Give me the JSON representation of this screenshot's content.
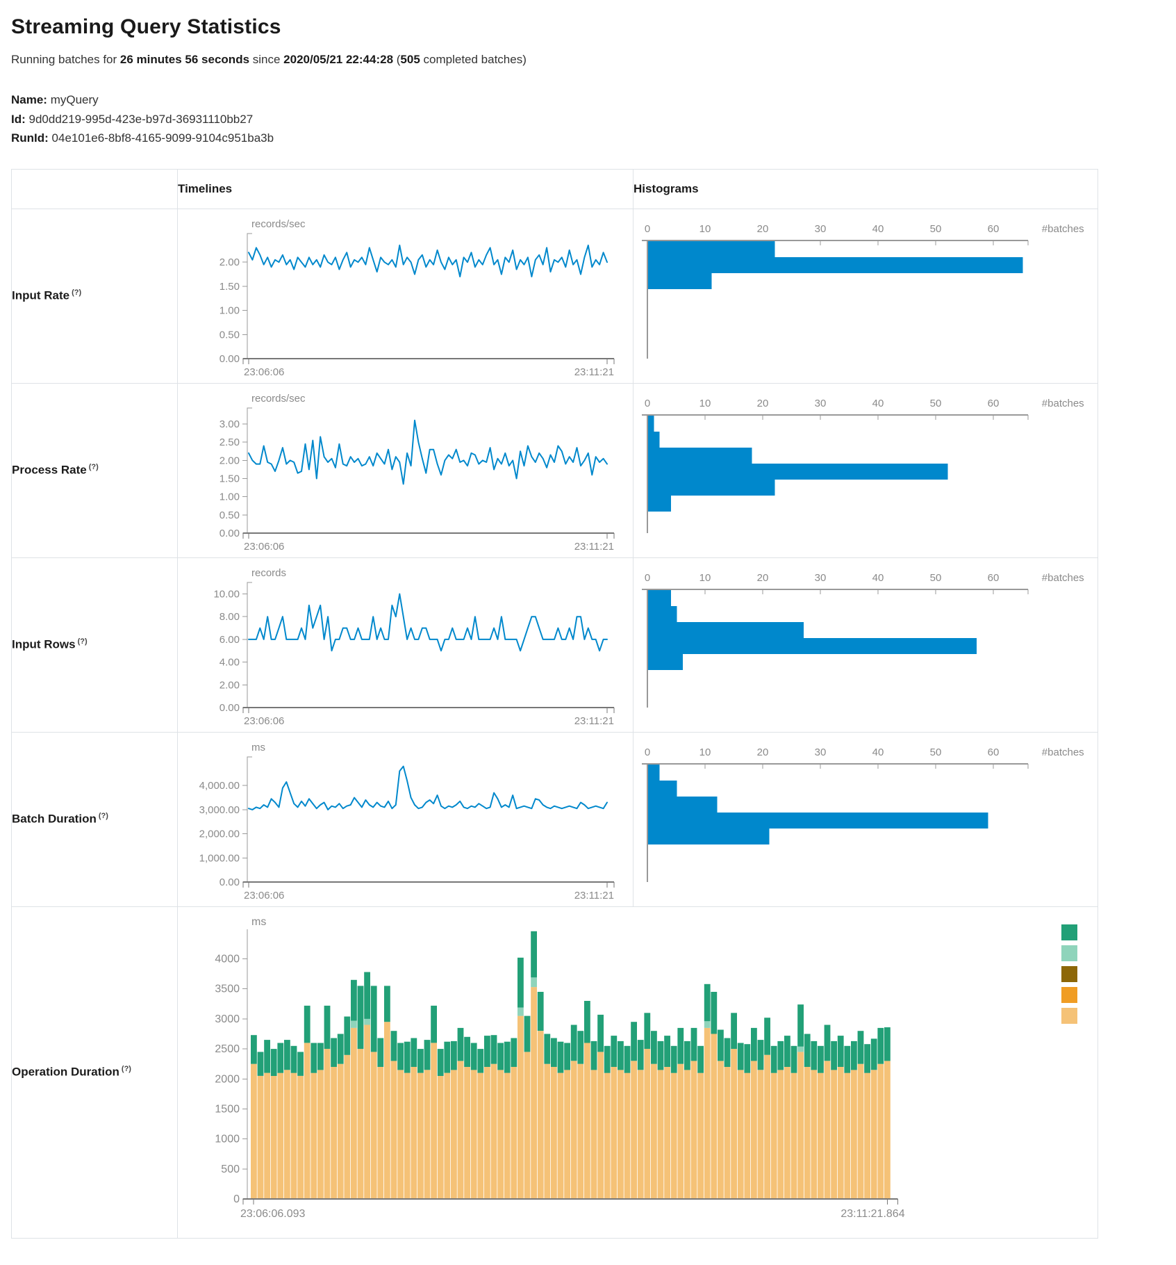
{
  "page": {
    "title": "Streaming Query Statistics",
    "summary": {
      "prefix": "Running batches for ",
      "duration": "26 minutes 56 seconds",
      "since": " since ",
      "start_time": "2020/05/21 22:44:28",
      "open_paren": " (",
      "batch_count": "505",
      "suffix": " completed batches)"
    },
    "meta": {
      "name_label": "Name:",
      "name_value": " myQuery",
      "id_label": "Id:",
      "id_value": " 9d0dd219-995d-423e-b97d-36931110bb27",
      "runid_label": "RunId:",
      "runid_value": " 04e101e6-8bf8-4165-9099-9104c951ba3b"
    }
  },
  "table": {
    "timelines_header": "Timelines",
    "histograms_header": "Histograms"
  },
  "colors": {
    "line": "#0088cc",
    "hist": "#0088cc",
    "axis": "#999999",
    "axis_strong": "#777777",
    "tick_text": "#8a8a8a",
    "stack_green": "#22a077",
    "stack_lightgreen": "#8fd4bb",
    "stack_tan": "#f5c277",
    "legend_brown": "#8d6708",
    "legend_orange": "#f09d24"
  },
  "chart_data": {
    "histogram_axis": {
      "ticks": [
        0,
        10,
        20,
        30,
        40,
        50,
        60
      ],
      "domain_max": 66,
      "label": "#batches"
    },
    "metrics": [
      {
        "name": "Input Rate",
        "help": "(?)",
        "unit": "records/sec",
        "type": "line",
        "x_start": "23:06:06",
        "x_end": "23:11:21",
        "ymax": 2.45,
        "yticks": [
          {
            "label": "2.00",
            "v": 2.0
          },
          {
            "label": "1.50",
            "v": 1.5
          },
          {
            "label": "1.00",
            "v": 1.0
          },
          {
            "label": "0.50",
            "v": 0.5
          },
          {
            "label": "0.00",
            "v": 0.0
          }
        ],
        "values": [
          2.2,
          2.05,
          2.3,
          2.15,
          1.95,
          2.1,
          1.9,
          2.05,
          2.0,
          2.15,
          1.95,
          2.05,
          1.85,
          2.1,
          2.0,
          1.9,
          2.1,
          1.95,
          2.05,
          1.9,
          2.15,
          2.0,
          1.95,
          2.1,
          1.85,
          2.05,
          2.2,
          1.9,
          2.05,
          2.0,
          2.1,
          1.95,
          2.3,
          2.05,
          1.8,
          2.1,
          2.0,
          1.95,
          2.05,
          1.9,
          2.35,
          1.95,
          2.1,
          2.0,
          1.75,
          2.05,
          2.15,
          1.9,
          2.05,
          1.95,
          2.25,
          2.0,
          1.85,
          2.1,
          1.95,
          2.05,
          1.7,
          2.1,
          2.0,
          2.2,
          1.9,
          2.05,
          1.95,
          2.15,
          2.3,
          1.95,
          2.05,
          1.75,
          2.1,
          2.0,
          2.25,
          1.85,
          2.05,
          1.95,
          2.1,
          1.7,
          2.05,
          2.15,
          1.95,
          2.3,
          1.8,
          2.05,
          2.0,
          2.1,
          1.9,
          2.25,
          1.95,
          2.05,
          1.75,
          2.1,
          2.35,
          1.9,
          2.05,
          1.95,
          2.2,
          2.0
        ],
        "histogram": {
          "type": "bar",
          "bins": [
            22,
            65,
            11
          ]
        }
      },
      {
        "name": "Process Rate",
        "help": "(?)",
        "unit": "records/sec",
        "type": "line",
        "x_start": "23:06:06",
        "x_end": "23:11:21",
        "ymax": 3.25,
        "yticks": [
          {
            "label": "3.00",
            "v": 3.0
          },
          {
            "label": "2.50",
            "v": 2.5
          },
          {
            "label": "2.00",
            "v": 2.0
          },
          {
            "label": "1.50",
            "v": 1.5
          },
          {
            "label": "1.00",
            "v": 1.0
          },
          {
            "label": "0.50",
            "v": 0.5
          },
          {
            "label": "0.00",
            "v": 0.0
          }
        ],
        "values": [
          2.2,
          2.0,
          1.9,
          1.9,
          2.4,
          1.95,
          1.9,
          1.7,
          2.0,
          2.35,
          1.9,
          2.0,
          1.95,
          1.65,
          1.7,
          2.45,
          1.75,
          2.55,
          1.5,
          2.65,
          2.1,
          1.95,
          2.05,
          1.8,
          2.45,
          1.9,
          1.85,
          2.1,
          1.95,
          2.05,
          1.85,
          1.9,
          2.1,
          1.85,
          2.2,
          2.05,
          1.9,
          2.3,
          1.75,
          2.1,
          1.95,
          1.35,
          2.2,
          1.85,
          3.1,
          2.5,
          2.05,
          1.65,
          2.3,
          2.3,
          1.9,
          1.6,
          2.0,
          2.15,
          2.05,
          2.3,
          1.95,
          2.0,
          1.85,
          2.2,
          2.15,
          1.9,
          2.0,
          1.95,
          2.35,
          1.75,
          2.05,
          1.9,
          2.2,
          1.85,
          2.0,
          1.5,
          2.25,
          1.85,
          2.4,
          2.1,
          1.95,
          2.2,
          2.05,
          1.8,
          2.15,
          1.95,
          2.4,
          2.25,
          1.9,
          2.1,
          1.95,
          2.35,
          1.85,
          2.0,
          2.2,
          1.6,
          2.1,
          1.95,
          2.05,
          1.9
        ],
        "histogram": {
          "type": "bar",
          "bins": [
            1,
            2,
            18,
            52,
            22,
            4
          ]
        }
      },
      {
        "name": "Input Rows",
        "help": "(?)",
        "unit": "records",
        "type": "line",
        "x_start": "23:06:06",
        "x_end": "23:11:21",
        "ymax": 10.4,
        "yticks": [
          {
            "label": "10.00",
            "v": 10.0
          },
          {
            "label": "8.00",
            "v": 8.0
          },
          {
            "label": "6.00",
            "v": 6.0
          },
          {
            "label": "4.00",
            "v": 4.0
          },
          {
            "label": "2.00",
            "v": 2.0
          },
          {
            "label": "0.00",
            "v": 0.0
          }
        ],
        "values": [
          6,
          6,
          6,
          7,
          6,
          8,
          6,
          6,
          7,
          8,
          6,
          6,
          6,
          6,
          7,
          6,
          9,
          7,
          8,
          9,
          6,
          8,
          5,
          6,
          6,
          7,
          7,
          6,
          6,
          7,
          6,
          6,
          6,
          8,
          6,
          7,
          6,
          6,
          9,
          8,
          10,
          8,
          6,
          7,
          6,
          6,
          7,
          7,
          6,
          6,
          6,
          5,
          6,
          6,
          7,
          6,
          6,
          6,
          7,
          6,
          8,
          6,
          6,
          6,
          6,
          7,
          6,
          8,
          6,
          6,
          6,
          6,
          5,
          6,
          7,
          8,
          8,
          7,
          6,
          6,
          6,
          6,
          7,
          6,
          6,
          7,
          6,
          8,
          8,
          6,
          7,
          6,
          6,
          5,
          6,
          6
        ],
        "histogram": {
          "type": "bar",
          "bins": [
            4,
            5,
            27,
            57,
            6
          ]
        }
      },
      {
        "name": "Batch Duration",
        "help": "(?)",
        "unit": "ms",
        "type": "line",
        "x_start": "23:06:06",
        "x_end": "23:11:21",
        "ymax": 4900,
        "yticks": [
          {
            "label": "4,000.00",
            "v": 4000
          },
          {
            "label": "3,000.00",
            "v": 3000
          },
          {
            "label": "2,000.00",
            "v": 2000
          },
          {
            "label": "1,000.00",
            "v": 1000
          },
          {
            "label": "0.00",
            "v": 0
          }
        ],
        "values": [
          3050,
          3000,
          3100,
          3050,
          3200,
          3100,
          3450,
          3300,
          3100,
          3900,
          4150,
          3700,
          3250,
          3100,
          3350,
          3150,
          3450,
          3250,
          3050,
          3200,
          3300,
          3000,
          3150,
          3100,
          3250,
          3050,
          3150,
          3200,
          3500,
          3300,
          3100,
          3400,
          3200,
          3100,
          3300,
          3150,
          3100,
          3350,
          3050,
          3200,
          4600,
          4800,
          4200,
          3500,
          3200,
          3050,
          3100,
          3300,
          3400,
          3250,
          3600,
          3150,
          3050,
          3150,
          3100,
          3200,
          3350,
          3100,
          3050,
          3150,
          3100,
          3250,
          3150,
          3050,
          3100,
          3700,
          3450,
          3100,
          3200,
          3100,
          3600,
          3050,
          3100,
          3150,
          3100,
          3050,
          3450,
          3400,
          3200,
          3100,
          3050,
          3150,
          3100,
          3050,
          3100,
          3150,
          3100,
          3050,
          3300,
          3200,
          3050,
          3100,
          3150,
          3100,
          3050,
          3300
        ],
        "histogram": {
          "type": "bar",
          "bins": [
            2,
            5,
            12,
            59,
            21
          ]
        }
      }
    ],
    "operation_duration": {
      "name": "Operation Duration",
      "help": "(?)",
      "unit": "ms",
      "type": "stacked-bar",
      "x_start": "23:06:06.093",
      "x_end": "23:11:21.864",
      "ymax": 4400,
      "yticks": [
        {
          "label": "4000",
          "v": 4000
        },
        {
          "label": "3500",
          "v": 3500
        },
        {
          "label": "3000",
          "v": 3000
        },
        {
          "label": "2500",
          "v": 2500
        },
        {
          "label": "2000",
          "v": 2000
        },
        {
          "label": "1500",
          "v": 1500
        },
        {
          "label": "1000",
          "v": 1000
        },
        {
          "label": "500",
          "v": 500
        },
        {
          "label": "0",
          "v": 0
        }
      ],
      "series": [
        {
          "name": "bottom-tan",
          "color": "#f5c277",
          "values": [
            2250,
            2050,
            2100,
            2050,
            2100,
            2150,
            2100,
            2050,
            2600,
            2100,
            2150,
            2500,
            2200,
            2250,
            2400,
            2850,
            2500,
            2900,
            2450,
            2200,
            2950,
            2300,
            2150,
            2100,
            2200,
            2100,
            2150,
            2600,
            2050,
            2100,
            2150,
            2300,
            2200,
            2150,
            2100,
            2200,
            2250,
            2150,
            2100,
            2200,
            3050,
            2450,
            3530,
            2800,
            2250,
            2200,
            2100,
            2150,
            2300,
            2250,
            2600,
            2150,
            2450,
            2100,
            2200,
            2150,
            2100,
            2300,
            2150,
            2500,
            2250,
            2150,
            2200,
            2100,
            2250,
            2150,
            2300,
            2100,
            2850,
            2750,
            2300,
            2200,
            2500,
            2150,
            2100,
            2300,
            2150,
            2400,
            2100,
            2150,
            2200,
            2100,
            2450,
            2200,
            2150,
            2100,
            2300,
            2150,
            2200,
            2100,
            2150,
            2250,
            2100,
            2150,
            2250,
            2300
          ]
        },
        {
          "name": "middle-lightgreen",
          "color": "#8fd4bb",
          "values": [
            0,
            0,
            0,
            0,
            0,
            0,
            0,
            0,
            0,
            0,
            0,
            0,
            0,
            0,
            0,
            120,
            0,
            100,
            0,
            0,
            0,
            0,
            0,
            0,
            0,
            0,
            0,
            0,
            0,
            0,
            0,
            0,
            0,
            0,
            0,
            0,
            0,
            0,
            0,
            0,
            140,
            0,
            160,
            0,
            0,
            0,
            0,
            0,
            0,
            0,
            0,
            0,
            0,
            0,
            0,
            0,
            0,
            0,
            0,
            0,
            0,
            0,
            0,
            0,
            0,
            0,
            0,
            0,
            110,
            0,
            0,
            0,
            0,
            0,
            0,
            0,
            0,
            0,
            0,
            0,
            0,
            0,
            90,
            0,
            0,
            0,
            0,
            0,
            0,
            0,
            0,
            0,
            0,
            0,
            0,
            0
          ]
        },
        {
          "name": "top-green",
          "color": "#22a077",
          "values": [
            480,
            400,
            550,
            450,
            500,
            500,
            450,
            400,
            620,
            500,
            450,
            720,
            480,
            500,
            640,
            680,
            1050,
            780,
            1100,
            480,
            600,
            500,
            450,
            520,
            480,
            400,
            500,
            620,
            450,
            520,
            480,
            550,
            500,
            450,
            400,
            520,
            480,
            450,
            520,
            480,
            830,
            600,
            770,
            650,
            500,
            480,
            520,
            450,
            600,
            550,
            700,
            480,
            620,
            450,
            520,
            480,
            450,
            650,
            500,
            600,
            550,
            480,
            520,
            450,
            600,
            480,
            550,
            450,
            620,
            700,
            520,
            480,
            600,
            450,
            480,
            550,
            500,
            620,
            450,
            480,
            520,
            450,
            700,
            550,
            480,
            450,
            600,
            480,
            520,
            450,
            480,
            550,
            480,
            520,
            600,
            560
          ]
        }
      ],
      "legend": [
        {
          "name": "legend-green",
          "color": "#22a077"
        },
        {
          "name": "legend-lightgreen",
          "color": "#8fd4bb"
        },
        {
          "name": "legend-brown",
          "color": "#8d6708"
        },
        {
          "name": "legend-orange",
          "color": "#f09d24"
        },
        {
          "name": "legend-tan",
          "color": "#f5c277"
        }
      ]
    }
  }
}
